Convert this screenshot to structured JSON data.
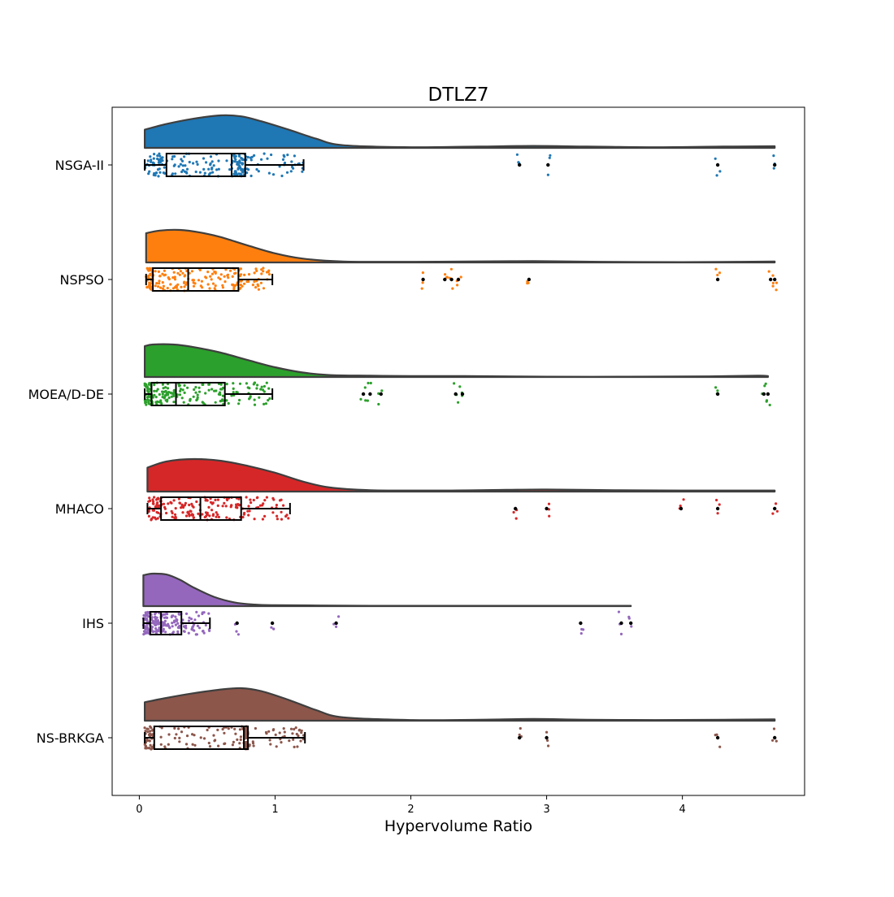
{
  "chart_data": {
    "type": "raincloud",
    "title": "DTLZ7",
    "xlabel": "Hypervolume Ratio",
    "ylabel": "",
    "xlim": [
      -0.2,
      4.9
    ],
    "xticks": [
      0,
      1,
      2,
      3,
      4
    ],
    "xtick_labels": [
      "0",
      "1",
      "2",
      "3",
      "4"
    ],
    "grid": false,
    "legend": "none",
    "categories": [
      "NSGA-II",
      "NSPSO",
      "MOEA/D-DE",
      "MHACO",
      "IHS",
      "NS-BRKGA"
    ],
    "series": [
      {
        "category": "NSGA-II",
        "color": "#1f77b4",
        "box": {
          "whisker_low": 0.04,
          "q1": 0.2,
          "median": 0.68,
          "q3": 0.78,
          "whisker_high": 1.21
        },
        "outliers": [
          2.8,
          3.01,
          4.26,
          4.68
        ],
        "density": {
          "x": [
            0.04,
            0.2,
            0.4,
            0.6,
            0.75,
            0.9,
            1.1,
            1.3,
            1.5,
            2.0,
            2.5,
            2.9,
            3.3,
            3.8,
            4.3,
            4.68
          ],
          "y": [
            0.55,
            0.72,
            0.88,
            0.98,
            0.95,
            0.8,
            0.55,
            0.28,
            0.08,
            0.02,
            0.04,
            0.06,
            0.04,
            0.02,
            0.04,
            0.05
          ]
        }
      },
      {
        "category": "NSPSO",
        "color": "#ff7f0e",
        "box": {
          "whisker_low": 0.05,
          "q1": 0.1,
          "median": 0.36,
          "q3": 0.73,
          "whisker_high": 0.98
        },
        "outliers": [
          2.09,
          2.25,
          2.3,
          2.35,
          2.87,
          4.26,
          4.65,
          4.68
        ],
        "density": {
          "x": [
            0.05,
            0.15,
            0.3,
            0.45,
            0.6,
            0.8,
            1.0,
            1.2,
            1.5,
            2.0,
            2.4,
            2.9,
            3.4,
            4.0,
            4.4,
            4.68
          ],
          "y": [
            0.9,
            0.98,
            1.0,
            0.92,
            0.78,
            0.52,
            0.28,
            0.12,
            0.03,
            0.02,
            0.03,
            0.04,
            0.02,
            0.01,
            0.02,
            0.03
          ]
        }
      },
      {
        "category": "MOEA/D-DE",
        "color": "#2ca02c",
        "box": {
          "whisker_low": 0.04,
          "q1": 0.09,
          "median": 0.27,
          "q3": 0.63,
          "whisker_high": 0.98
        },
        "outliers": [
          1.65,
          1.7,
          1.78,
          2.33,
          2.38,
          4.26,
          4.6,
          4.63
        ],
        "density": {
          "x": [
            0.04,
            0.1,
            0.25,
            0.4,
            0.6,
            0.8,
            1.0,
            1.2,
            1.4,
            1.7,
            2.0,
            2.4,
            3.0,
            3.6,
            4.2,
            4.55,
            4.63
          ],
          "y": [
            0.95,
            1.0,
            1.0,
            0.92,
            0.75,
            0.52,
            0.3,
            0.14,
            0.06,
            0.04,
            0.03,
            0.03,
            0.01,
            0.01,
            0.02,
            0.04,
            0.03
          ]
        }
      },
      {
        "category": "MHACO",
        "color": "#d62728",
        "box": {
          "whisker_low": 0.06,
          "q1": 0.16,
          "median": 0.45,
          "q3": 0.75,
          "whisker_high": 1.11
        },
        "outliers": [
          2.77,
          3.0,
          3.99,
          4.26,
          4.68
        ],
        "density": {
          "x": [
            0.06,
            0.2,
            0.4,
            0.6,
            0.8,
            1.0,
            1.2,
            1.4,
            1.7,
            2.2,
            2.7,
            3.0,
            3.5,
            4.0,
            4.3,
            4.68
          ],
          "y": [
            0.7,
            0.88,
            0.95,
            0.9,
            0.75,
            0.55,
            0.3,
            0.12,
            0.04,
            0.03,
            0.05,
            0.06,
            0.04,
            0.03,
            0.03,
            0.03
          ]
        }
      },
      {
        "category": "IHS",
        "color": "#9467bd",
        "box": {
          "whisker_low": 0.03,
          "q1": 0.08,
          "median": 0.16,
          "q3": 0.31,
          "whisker_high": 0.52
        },
        "outliers": [
          0.72,
          0.98,
          1.45,
          3.25,
          3.55,
          3.62
        ],
        "density": {
          "x": [
            0.03,
            0.1,
            0.2,
            0.3,
            0.4,
            0.55,
            0.7,
            0.85,
            1.0,
            1.3,
            1.7,
            2.2,
            2.7,
            3.2,
            3.5,
            3.62
          ],
          "y": [
            1.0,
            1.05,
            1.02,
            0.85,
            0.6,
            0.3,
            0.12,
            0.05,
            0.03,
            0.02,
            0.01,
            0.01,
            0.01,
            0.01,
            0.01,
            0.01
          ]
        }
      },
      {
        "category": "NS-BRKGA",
        "color": "#8c564b",
        "box": {
          "whisker_low": 0.04,
          "q1": 0.11,
          "median": 0.77,
          "q3": 0.8,
          "whisker_high": 1.22
        },
        "outliers": [
          2.8,
          3.0,
          4.26,
          4.68
        ],
        "density": {
          "x": [
            0.04,
            0.2,
            0.4,
            0.6,
            0.75,
            0.9,
            1.1,
            1.3,
            1.5,
            2.0,
            2.5,
            2.9,
            3.3,
            3.8,
            4.3,
            4.68
          ],
          "y": [
            0.55,
            0.68,
            0.82,
            0.93,
            0.97,
            0.88,
            0.62,
            0.32,
            0.1,
            0.02,
            0.03,
            0.05,
            0.03,
            0.02,
            0.03,
            0.04
          ]
        }
      }
    ]
  }
}
